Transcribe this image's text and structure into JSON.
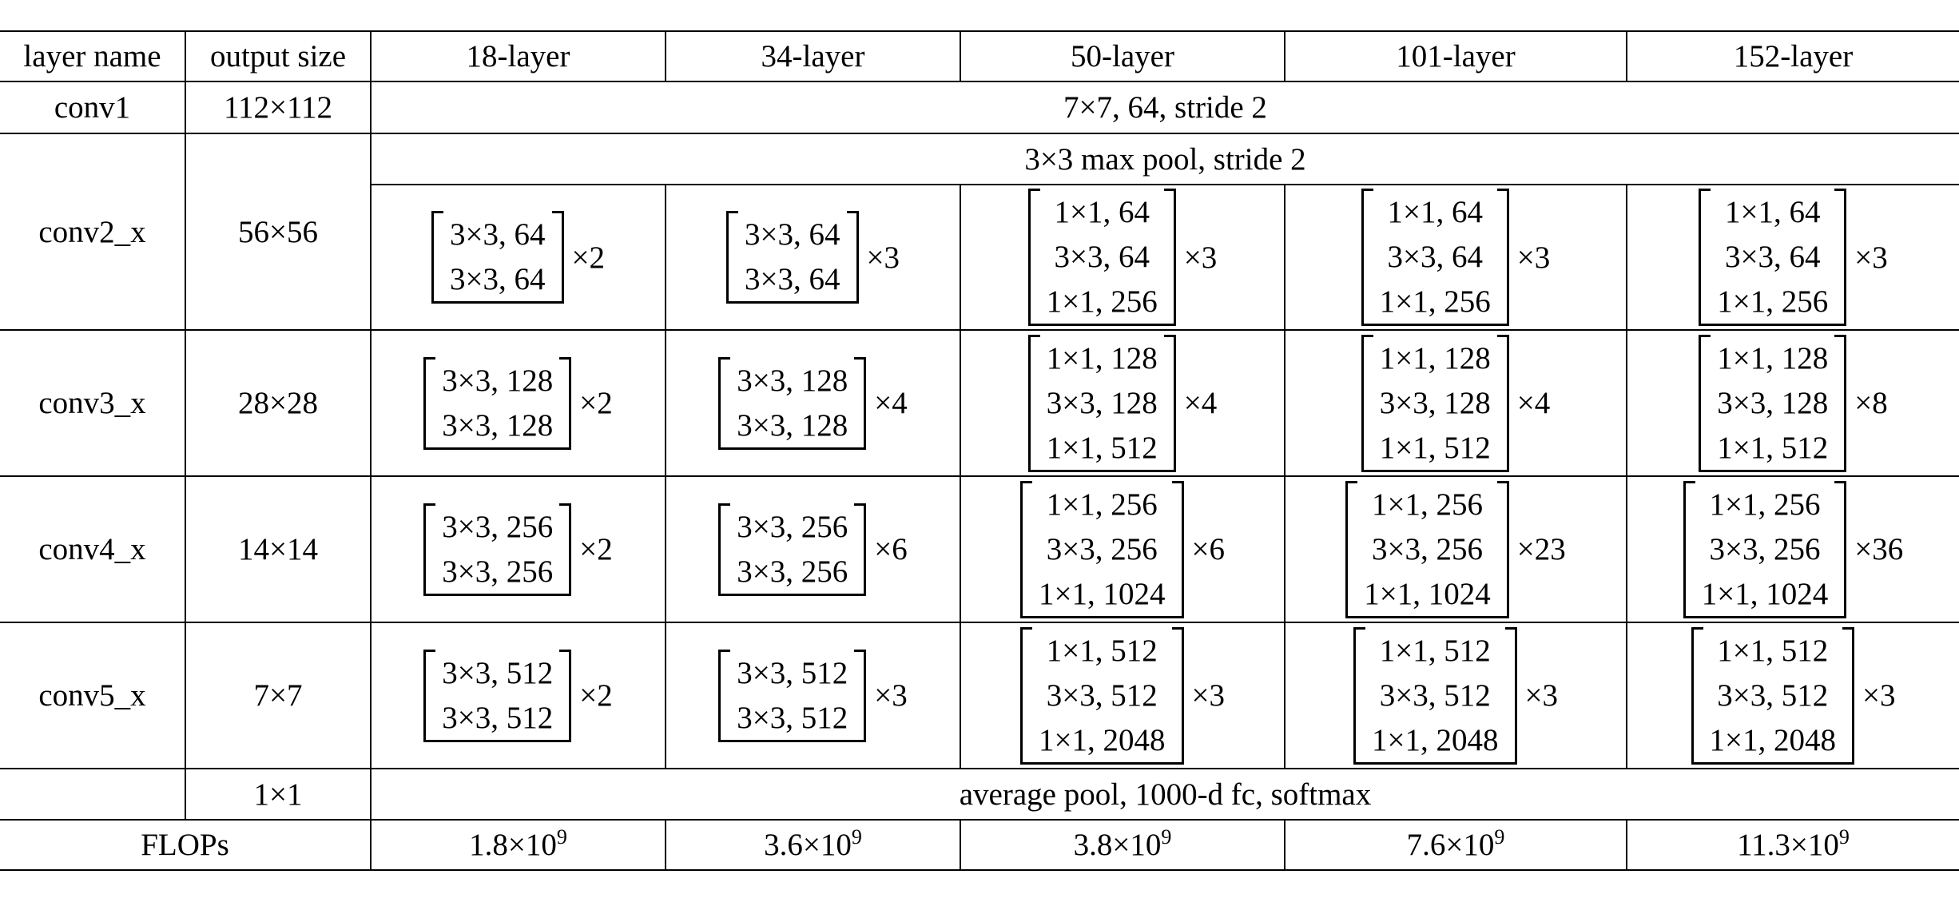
{
  "headers": [
    "layer name",
    "output size",
    "18-layer",
    "34-layer",
    "50-layer",
    "101-layer",
    "152-layer"
  ],
  "conv1": {
    "name": "conv1",
    "output": "112×112",
    "spec": "7×7, 64, stride 2"
  },
  "pool": {
    "spec": "3×3 max pool, stride 2"
  },
  "stages": [
    {
      "name": "conv2_x",
      "output": "56×56",
      "blocks": [
        {
          "lines": [
            "3×3, 64",
            "3×3, 64"
          ],
          "repeat": "×2"
        },
        {
          "lines": [
            "3×3, 64",
            "3×3, 64"
          ],
          "repeat": "×3"
        },
        {
          "lines": [
            "1×1, 64",
            "3×3, 64",
            "1×1, 256"
          ],
          "repeat": "×3"
        },
        {
          "lines": [
            "1×1, 64",
            "3×3, 64",
            "1×1, 256"
          ],
          "repeat": "×3"
        },
        {
          "lines": [
            "1×1, 64",
            "3×3, 64",
            "1×1, 256"
          ],
          "repeat": "×3"
        }
      ]
    },
    {
      "name": "conv3_x",
      "output": "28×28",
      "blocks": [
        {
          "lines": [
            "3×3, 128",
            "3×3, 128"
          ],
          "repeat": "×2"
        },
        {
          "lines": [
            "3×3, 128",
            "3×3, 128"
          ],
          "repeat": "×4"
        },
        {
          "lines": [
            "1×1, 128",
            "3×3, 128",
            "1×1, 512"
          ],
          "repeat": "×4"
        },
        {
          "lines": [
            "1×1, 128",
            "3×3, 128",
            "1×1, 512"
          ],
          "repeat": "×4"
        },
        {
          "lines": [
            "1×1, 128",
            "3×3, 128",
            "1×1, 512"
          ],
          "repeat": "×8"
        }
      ]
    },
    {
      "name": "conv4_x",
      "output": "14×14",
      "blocks": [
        {
          "lines": [
            "3×3, 256",
            "3×3, 256"
          ],
          "repeat": "×2"
        },
        {
          "lines": [
            "3×3, 256",
            "3×3, 256"
          ],
          "repeat": "×6"
        },
        {
          "lines": [
            "1×1, 256",
            "3×3, 256",
            "1×1, 1024"
          ],
          "repeat": "×6"
        },
        {
          "lines": [
            "1×1, 256",
            "3×3, 256",
            "1×1, 1024"
          ],
          "repeat": "×23"
        },
        {
          "lines": [
            "1×1, 256",
            "3×3, 256",
            "1×1, 1024"
          ],
          "repeat": "×36"
        }
      ]
    },
    {
      "name": "conv5_x",
      "output": "7×7",
      "blocks": [
        {
          "lines": [
            "3×3, 512",
            "3×3, 512"
          ],
          "repeat": "×2"
        },
        {
          "lines": [
            "3×3, 512",
            "3×3, 512"
          ],
          "repeat": "×3"
        },
        {
          "lines": [
            "1×1, 512",
            "3×3, 512",
            "1×1, 2048"
          ],
          "repeat": "×3"
        },
        {
          "lines": [
            "1×1, 512",
            "3×3, 512",
            "1×1, 2048"
          ],
          "repeat": "×3"
        },
        {
          "lines": [
            "1×1, 512",
            "3×3, 512",
            "1×1, 2048"
          ],
          "repeat": "×3"
        }
      ]
    }
  ],
  "final": {
    "name": "",
    "output": "1×1",
    "spec": "average pool, 1000-d fc, softmax"
  },
  "flops": {
    "label": "FLOPs",
    "values": [
      {
        "mantissa": "1.8×10",
        "exp": "9"
      },
      {
        "mantissa": "3.6×10",
        "exp": "9"
      },
      {
        "mantissa": "3.8×10",
        "exp": "9"
      },
      {
        "mantissa": "7.6×10",
        "exp": "9"
      },
      {
        "mantissa": "11.3×10",
        "exp": "9"
      }
    ]
  }
}
